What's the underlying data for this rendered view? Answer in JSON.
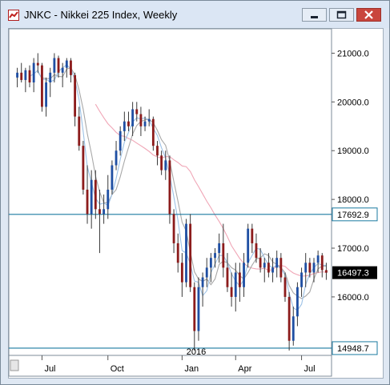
{
  "window": {
    "title": "JNKC - Nikkei 225 Index, Weekly",
    "buttons": {
      "minimize": "minimize-icon",
      "maximize": "maximize-icon",
      "close": "close-icon"
    }
  },
  "chart_data": {
    "type": "candlestick",
    "title": "",
    "ylim": [
      14800,
      21500
    ],
    "y_ticks": [
      "21000.0",
      "20000.0",
      "19000.0",
      "18000.0",
      "17000.0",
      "16000.0"
    ],
    "x_labels": [
      "Jul",
      "Oct",
      "Jan",
      "Apr",
      "Jul"
    ],
    "year_label": "2016",
    "year_label_index": 43,
    "x_label_index": [
      6,
      22,
      40,
      53,
      69
    ],
    "last_price": "16497.3",
    "horizontal_lines": [
      {
        "value": 17692.9,
        "label": "17692.9"
      },
      {
        "value": 14948.7,
        "label": "14948.7"
      }
    ],
    "colors": {
      "up": "#1f4fa3",
      "down": "#8c1c1c",
      "wick": "#3a3a3a",
      "hline": "#1a7aa0",
      "ma_short": "#9cc1e6",
      "ma_mid": "#a8a8a8",
      "ma_long": "#f0a6b6"
    },
    "candles": [
      [
        20500,
        20700,
        20300,
        20600
      ],
      [
        20600,
        20800,
        20400,
        20450
      ],
      [
        20450,
        20700,
        20200,
        20650
      ],
      [
        20650,
        20750,
        20300,
        20400
      ],
      [
        20400,
        20900,
        20200,
        20800
      ],
      [
        20800,
        21000,
        20600,
        20750
      ],
      [
        20750,
        20800,
        19800,
        19900
      ],
      [
        19900,
        20500,
        19700,
        20400
      ],
      [
        20400,
        20700,
        20100,
        20600
      ],
      [
        20600,
        21000,
        20400,
        20900
      ],
      [
        20900,
        20950,
        20500,
        20600
      ],
      [
        20600,
        20800,
        20300,
        20700
      ],
      [
        20700,
        20900,
        20500,
        20850
      ],
      [
        20850,
        20900,
        20400,
        20550
      ],
      [
        20550,
        20600,
        19500,
        19700
      ],
      [
        19700,
        19900,
        19000,
        19100
      ],
      [
        19100,
        19200,
        18100,
        18200
      ],
      [
        18200,
        18700,
        17500,
        17700
      ],
      [
        17700,
        18600,
        17400,
        18400
      ],
      [
        18400,
        18600,
        17600,
        17800
      ],
      [
        17800,
        18200,
        16900,
        17700
      ],
      [
        17700,
        18100,
        17500,
        17800
      ],
      [
        17800,
        18500,
        17600,
        18200
      ],
      [
        18200,
        18800,
        18100,
        18700
      ],
      [
        18700,
        19200,
        18600,
        19000
      ],
      [
        19000,
        19500,
        18900,
        19400
      ],
      [
        19400,
        19800,
        19200,
        19600
      ],
      [
        19600,
        19800,
        19400,
        19500
      ],
      [
        19500,
        20000,
        19300,
        19850
      ],
      [
        19850,
        20000,
        19600,
        19750
      ],
      [
        19750,
        19900,
        19300,
        19500
      ],
      [
        19500,
        19700,
        19400,
        19600
      ],
      [
        19600,
        19850,
        19500,
        19650
      ],
      [
        19650,
        19700,
        19000,
        19100
      ],
      [
        19100,
        19200,
        18700,
        18900
      ],
      [
        18900,
        19000,
        18500,
        18600
      ],
      [
        18600,
        19000,
        18400,
        18800
      ],
      [
        18800,
        18900,
        17500,
        17700
      ],
      [
        17700,
        17800,
        16900,
        17100
      ],
      [
        17100,
        17300,
        16500,
        16700
      ],
      [
        16700,
        16900,
        16000,
        16300
      ],
      [
        16300,
        17600,
        16200,
        17500
      ],
      [
        17500,
        17700,
        16100,
        16200
      ],
      [
        16200,
        16300,
        14900,
        15300
      ],
      [
        15300,
        16400,
        15100,
        16200
      ],
      [
        16200,
        16500,
        15800,
        16400
      ],
      [
        16400,
        16800,
        16200,
        16600
      ],
      [
        16600,
        16900,
        16300,
        16800
      ],
      [
        16800,
        17000,
        16600,
        16900
      ],
      [
        16900,
        17300,
        16700,
        17100
      ],
      [
        17100,
        17500,
        16400,
        16600
      ],
      [
        16600,
        16900,
        16100,
        16200
      ],
      [
        16200,
        16500,
        15800,
        16000
      ],
      [
        16000,
        16700,
        15700,
        16500
      ],
      [
        16500,
        16700,
        15900,
        16200
      ],
      [
        16200,
        16900,
        16000,
        16700
      ],
      [
        16700,
        17500,
        16600,
        17400
      ],
      [
        17400,
        17500,
        16900,
        17100
      ],
      [
        17100,
        17300,
        16700,
        16800
      ],
      [
        16800,
        17000,
        16500,
        16600
      ],
      [
        16600,
        16800,
        16300,
        16700
      ],
      [
        16700,
        16900,
        16400,
        16500
      ],
      [
        16500,
        16800,
        16300,
        16600
      ],
      [
        16600,
        16950,
        16400,
        16800
      ],
      [
        16800,
        16900,
        16300,
        16400
      ],
      [
        16400,
        16500,
        15900,
        16000
      ],
      [
        16000,
        16100,
        14900,
        15100
      ],
      [
        15100,
        15800,
        15000,
        15600
      ],
      [
        15600,
        16300,
        15400,
        16200
      ],
      [
        16200,
        16600,
        16000,
        16500
      ],
      [
        16500,
        16900,
        16200,
        16700
      ],
      [
        16700,
        16800,
        16400,
        16500
      ],
      [
        16500,
        16800,
        16300,
        16700
      ],
      [
        16700,
        16950,
        16500,
        16850
      ],
      [
        16850,
        16900,
        16400,
        16550
      ],
      [
        16550,
        16700,
        16350,
        16497
      ]
    ]
  }
}
